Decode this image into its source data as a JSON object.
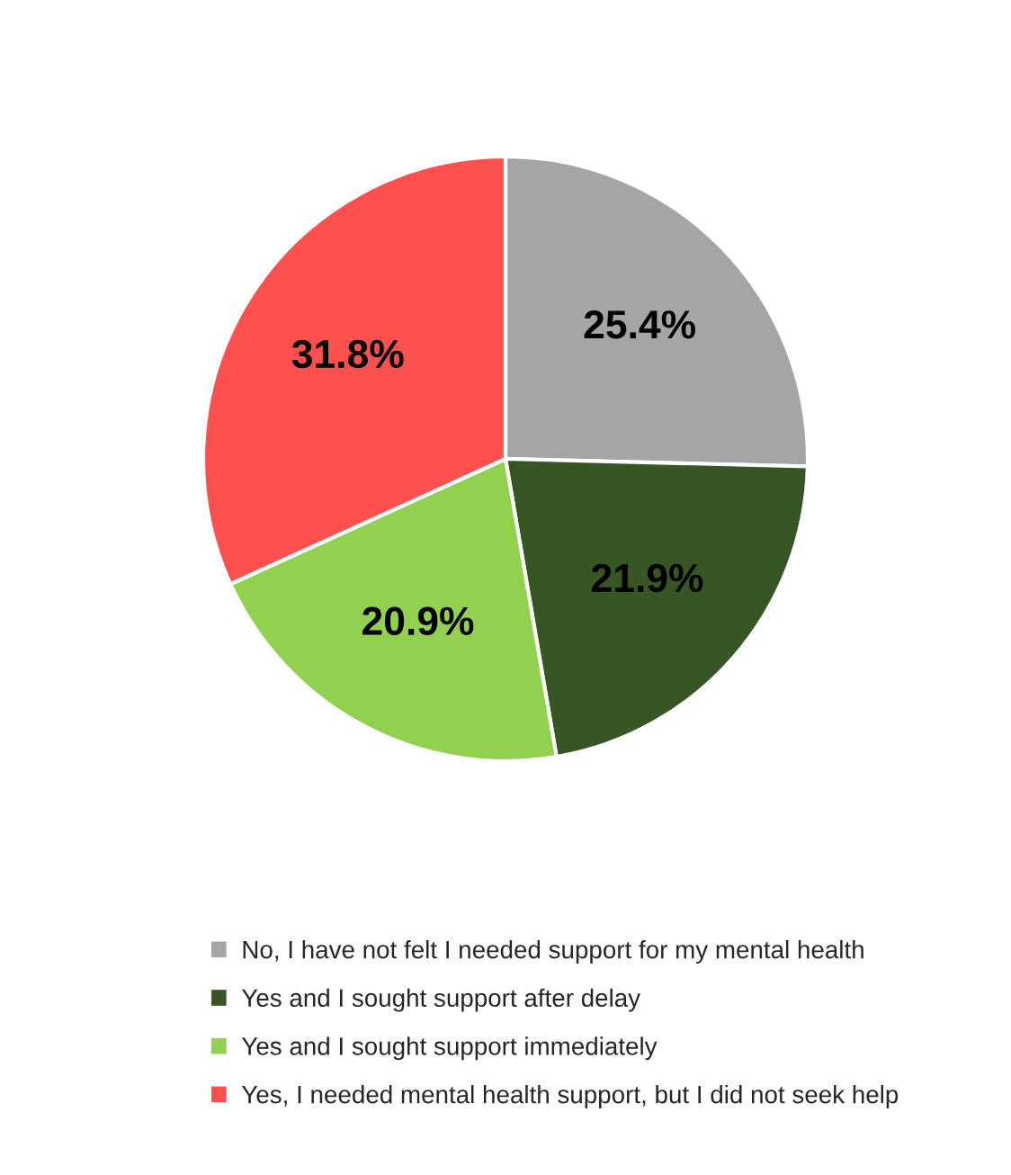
{
  "chart_data": {
    "type": "pie",
    "categories": [
      "No, I have not felt I needed support for my mental health",
      "Yes and I sought support after delay",
      "Yes and I sought support immediately",
      "Yes, I needed mental health support, but I did not seek help"
    ],
    "values": [
      25.4,
      21.9,
      20.9,
      31.8
    ],
    "value_labels": [
      "25.4%",
      "21.9%",
      "20.9%",
      "31.8%"
    ],
    "colors": [
      "#a5a5a5",
      "#375623",
      "#92d050",
      "#ff5050"
    ],
    "legend": "bottom"
  }
}
